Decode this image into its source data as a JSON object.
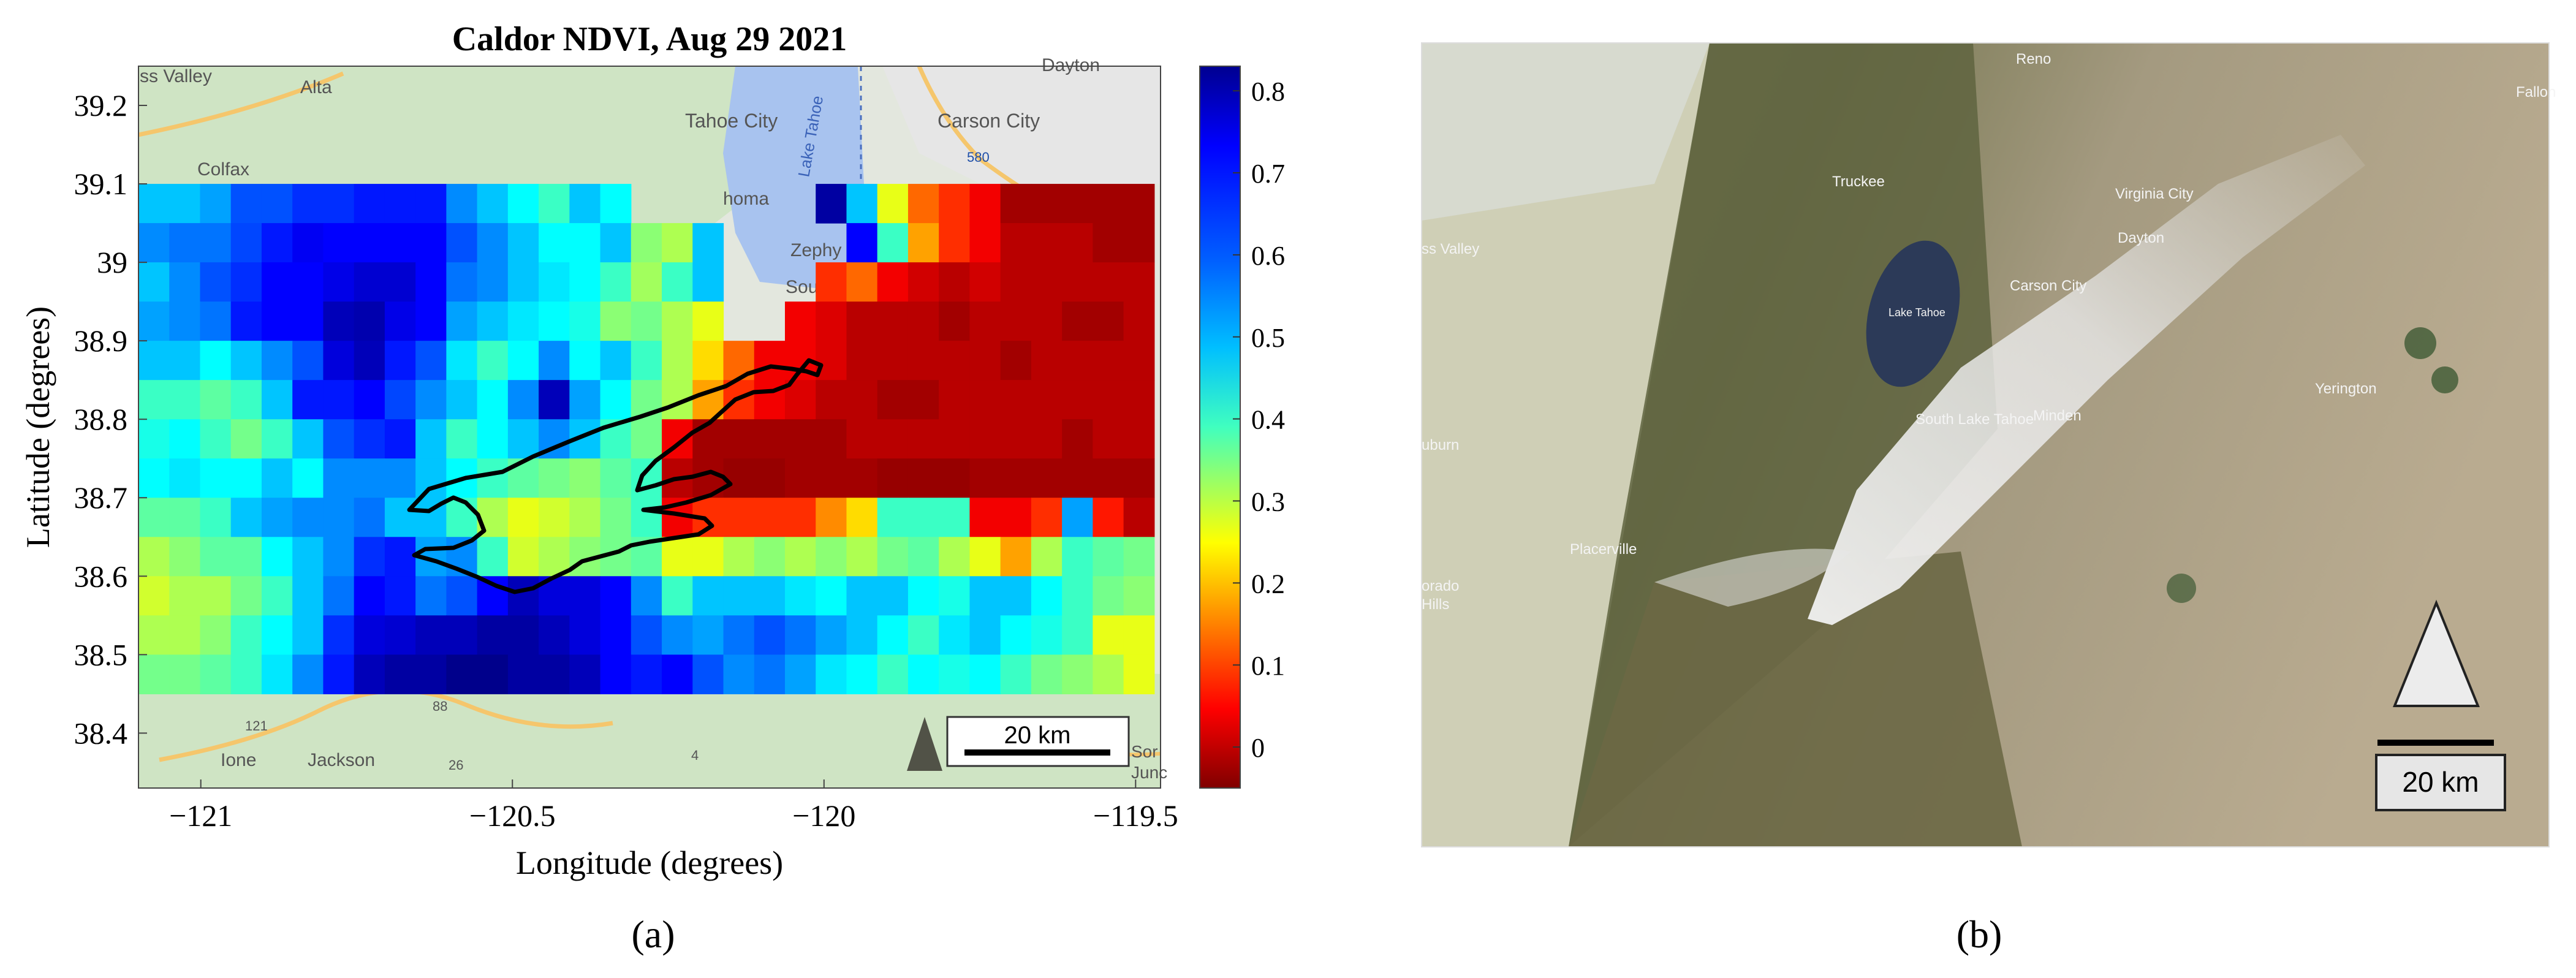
{
  "panel_a": {
    "caption": "(a)",
    "map_labels": [
      "ss Valley",
      "Alta",
      "Tahoe City",
      "Carson City",
      "Dayton",
      "Colfax",
      "homa",
      "Lake Tahoe",
      "Zephy",
      "South L",
      "Ione",
      "Jackson",
      "Sor",
      "Junc",
      "121",
      "88",
      "26",
      "4",
      "580"
    ],
    "scalebar_label": "20 km"
  },
  "panel_b": {
    "caption": "(b)",
    "map_labels": [
      "Reno",
      "Truckee",
      "Virginia City",
      "Dayton",
      "Lake Tahoe",
      "Carson City",
      "South Lake Tahoe",
      "Minden",
      "Yerington",
      "Placerville",
      "ss Valley",
      "Fallon",
      "uburn",
      "orado",
      "Hills"
    ],
    "scalebar_label": "20 km"
  },
  "chart_data": {
    "type": "heatmap",
    "title": "Caldor NDVI, Aug 29 2021",
    "xlabel": "Longitude (degrees)",
    "ylabel": "Latitude (degrees)",
    "xlim": [
      -121.1,
      -119.46
    ],
    "ylim": [
      38.33,
      39.25
    ],
    "x_ticks": [
      -121,
      -120.5,
      -120,
      -119.5
    ],
    "x_tick_labels": [
      "−121",
      "−120.5",
      "−120",
      "−119.5"
    ],
    "y_ticks": [
      38.4,
      38.5,
      38.6,
      38.7,
      38.8,
      38.9,
      39.0,
      39.1,
      39.2
    ],
    "y_tick_labels": [
      "38.4",
      "38.5",
      "38.6",
      "38.7",
      "38.8",
      "38.9",
      "39",
      "39.1",
      "39.2"
    ],
    "grid": false,
    "colormap": "jet_reversed",
    "colorbar": {
      "range": [
        -0.05,
        0.83
      ],
      "ticks": [
        0,
        0.1,
        0.2,
        0.3,
        0.4,
        0.5,
        0.6,
        0.7,
        0.8
      ],
      "tick_labels": [
        "0",
        "0.1",
        "0.2",
        "0.3",
        "0.4",
        "0.5",
        "0.6",
        "0.7",
        "0.8"
      ]
    },
    "x_edges": [
      -121.1,
      -119.47
    ],
    "y_edges": [
      38.45,
      39.1
    ],
    "no_data_value": null,
    "z": [
      [
        0.55,
        0.55,
        0.58,
        0.65,
        0.65,
        0.68,
        0.68,
        0.7,
        0.7,
        0.7,
        0.6,
        0.55,
        0.5,
        0.45,
        0.55,
        0.5,
        null,
        null,
        null,
        null,
        null,
        null,
        0.8,
        0.55,
        0.3,
        0.15,
        0.1,
        0.05,
        -0.02,
        -0.02,
        -0.02,
        -0.02,
        -0.02
      ],
      [
        0.6,
        0.62,
        0.62,
        0.66,
        0.7,
        0.73,
        0.72,
        0.72,
        0.72,
        0.72,
        0.65,
        0.6,
        0.55,
        0.5,
        0.5,
        0.55,
        0.38,
        0.35,
        0.55,
        null,
        null,
        null,
        null,
        0.72,
        0.45,
        0.2,
        0.1,
        0.05,
        0.0,
        0.0,
        0.0,
        -0.02,
        -0.02
      ],
      [
        0.55,
        0.6,
        0.65,
        0.68,
        0.72,
        0.72,
        0.74,
        0.76,
        0.76,
        0.72,
        0.62,
        0.6,
        0.55,
        0.52,
        0.5,
        0.45,
        0.36,
        0.45,
        0.55,
        null,
        null,
        null,
        0.1,
        0.15,
        0.05,
        0.02,
        0.0,
        0.02,
        0.0,
        0.0,
        0.0,
        0.0,
        0.0
      ],
      [
        0.58,
        0.6,
        0.62,
        0.7,
        0.72,
        0.72,
        0.78,
        0.79,
        0.74,
        0.72,
        0.58,
        0.55,
        0.52,
        0.5,
        0.48,
        0.38,
        0.4,
        0.35,
        0.3,
        null,
        null,
        0.05,
        0.03,
        0.0,
        0.0,
        0.0,
        -0.02,
        0.0,
        0.0,
        0.0,
        -0.02,
        -0.02,
        0.0
      ],
      [
        0.55,
        0.55,
        0.5,
        0.55,
        0.6,
        0.65,
        0.75,
        0.78,
        0.7,
        0.65,
        0.52,
        0.45,
        0.5,
        0.6,
        0.5,
        0.55,
        0.45,
        0.35,
        0.25,
        0.15,
        0.05,
        0.05,
        0.03,
        0.0,
        0.0,
        0.0,
        0.0,
        0.0,
        -0.02,
        0.0,
        0.0,
        0.0,
        0.0
      ],
      [
        0.45,
        0.45,
        0.42,
        0.45,
        0.55,
        0.7,
        0.7,
        0.72,
        0.66,
        0.6,
        0.55,
        0.5,
        0.6,
        0.78,
        0.58,
        0.5,
        0.4,
        0.35,
        0.2,
        0.1,
        0.05,
        0.03,
        0.0,
        0.0,
        -0.02,
        -0.02,
        0.0,
        0.0,
        0.0,
        0.0,
        0.0,
        0.0,
        0.0
      ],
      [
        0.48,
        0.5,
        0.45,
        0.4,
        0.45,
        0.55,
        0.65,
        0.68,
        0.7,
        0.55,
        0.45,
        0.5,
        0.55,
        0.6,
        0.55,
        0.45,
        0.4,
        0.05,
        -0.02,
        -0.02,
        -0.02,
        -0.02,
        -0.02,
        0.0,
        0.0,
        0.0,
        0.0,
        0.0,
        0.0,
        0.0,
        -0.02,
        0.0,
        0.0
      ],
      [
        0.5,
        0.52,
        0.5,
        0.5,
        0.55,
        0.5,
        0.6,
        0.6,
        0.6,
        0.55,
        0.5,
        0.45,
        0.42,
        0.4,
        0.38,
        0.42,
        0.45,
        0.0,
        -0.02,
        -0.03,
        -0.03,
        -0.02,
        -0.02,
        -0.02,
        -0.03,
        -0.03,
        -0.03,
        -0.02,
        -0.02,
        -0.02,
        -0.02,
        -0.02,
        -0.02
      ],
      [
        0.42,
        0.42,
        0.45,
        0.55,
        0.58,
        0.6,
        0.6,
        0.62,
        0.55,
        0.55,
        0.45,
        0.35,
        0.3,
        0.32,
        0.35,
        0.4,
        0.45,
        0.05,
        0.1,
        0.1,
        0.1,
        0.1,
        0.18,
        0.25,
        0.45,
        0.45,
        0.45,
        0.05,
        0.05,
        0.1,
        0.58,
        0.08,
        0.0
      ],
      [
        0.35,
        0.38,
        0.42,
        0.42,
        0.5,
        0.55,
        0.6,
        0.68,
        0.7,
        0.58,
        0.6,
        0.45,
        0.32,
        0.35,
        0.38,
        0.4,
        0.42,
        0.3,
        0.3,
        0.35,
        0.38,
        0.35,
        0.38,
        0.35,
        0.4,
        0.42,
        0.35,
        0.3,
        0.2,
        0.35,
        0.45,
        0.42,
        0.4
      ],
      [
        0.32,
        0.35,
        0.35,
        0.4,
        0.45,
        0.55,
        0.62,
        0.72,
        0.7,
        0.62,
        0.65,
        0.72,
        0.78,
        0.75,
        0.75,
        0.72,
        0.6,
        0.45,
        0.55,
        0.55,
        0.55,
        0.52,
        0.5,
        0.55,
        0.55,
        0.5,
        0.48,
        0.55,
        0.55,
        0.5,
        0.45,
        0.4,
        0.38
      ],
      [
        0.35,
        0.35,
        0.38,
        0.45,
        0.5,
        0.55,
        0.68,
        0.75,
        0.76,
        0.78,
        0.78,
        0.8,
        0.8,
        0.78,
        0.75,
        0.72,
        0.65,
        0.6,
        0.58,
        0.62,
        0.65,
        0.62,
        0.58,
        0.55,
        0.5,
        0.45,
        0.52,
        0.55,
        0.5,
        0.48,
        0.45,
        0.3,
        0.3
      ],
      [
        0.4,
        0.4,
        0.42,
        0.45,
        0.52,
        0.6,
        0.7,
        0.78,
        0.8,
        0.8,
        0.82,
        0.82,
        0.8,
        0.8,
        0.78,
        0.72,
        0.7,
        0.72,
        0.65,
        0.6,
        0.62,
        0.58,
        0.52,
        0.5,
        0.45,
        0.5,
        0.48,
        0.5,
        0.45,
        0.4,
        0.38,
        0.35,
        0.3
      ]
    ],
    "annotations": [
      "Caldor fire perimeter (black outline)",
      "north arrow",
      "scale bar 20 km"
    ]
  }
}
